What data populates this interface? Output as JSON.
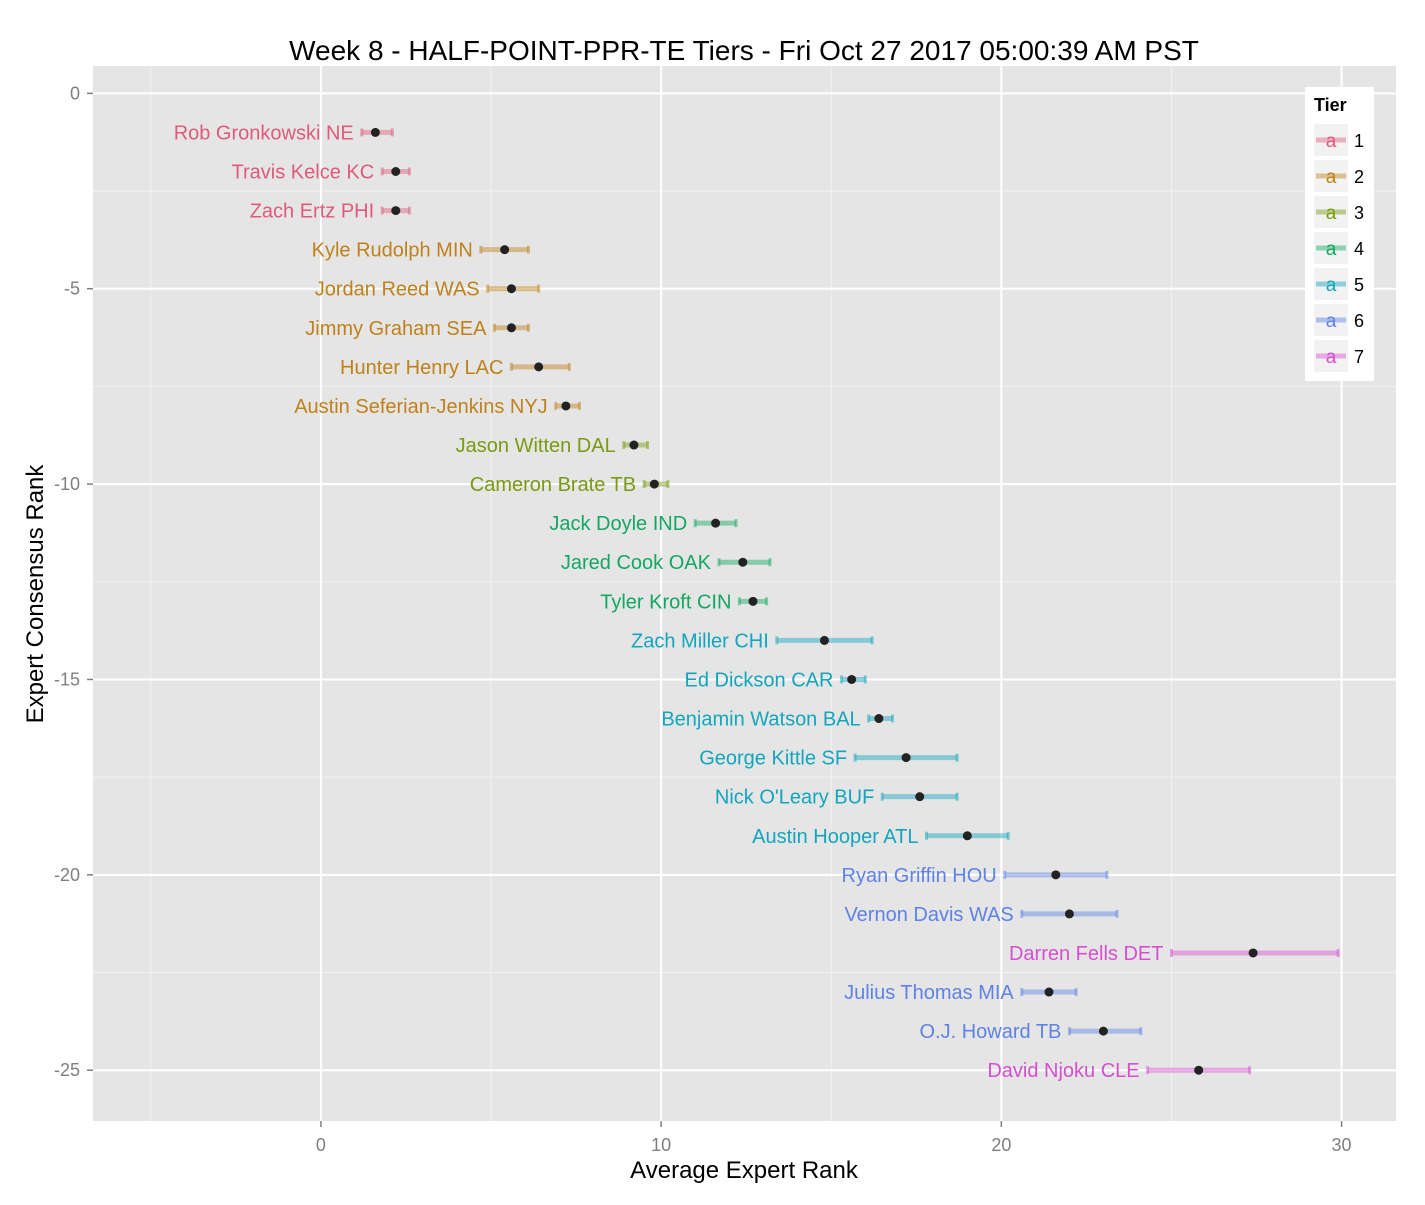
{
  "chart_data": {
    "type": "scatter",
    "title": "Week 8 - HALF-POINT-PPR-TE Tiers - Fri Oct 27 2017 05:00:39 AM PST",
    "xlabel": "Average Expert Rank",
    "ylabel": "Expert Consensus Rank",
    "xlim": [
      -6.7,
      31.6
    ],
    "ylim": [
      -26.3,
      0.7
    ],
    "x_ticks": [
      0,
      10,
      20,
      30
    ],
    "x_tick_labels": [
      "0",
      "10",
      "20",
      "30"
    ],
    "y_ticks": [
      0,
      -5,
      -10,
      -15,
      -20,
      -25
    ],
    "y_tick_labels": [
      "0",
      "-5",
      "-10",
      "-15",
      "-20",
      "-25"
    ],
    "grid": true,
    "legend": {
      "title": "Tier",
      "placement": "top-right",
      "key_glyph": "a",
      "items": [
        {
          "label": "1",
          "color": "#e05a7a"
        },
        {
          "label": "2",
          "color": "#c0811a"
        },
        {
          "label": "3",
          "color": "#7a9a10"
        },
        {
          "label": "4",
          "color": "#12a862"
        },
        {
          "label": "5",
          "color": "#12a6be"
        },
        {
          "label": "6",
          "color": "#5e82e6"
        },
        {
          "label": "7",
          "color": "#d64fd0"
        }
      ]
    },
    "series": [
      {
        "label": "Rob Gronkowski NE",
        "tier": 1,
        "rank": -1,
        "avg": 1.6,
        "lo": 1.2,
        "hi": 2.1
      },
      {
        "label": "Travis Kelce KC",
        "tier": 1,
        "rank": -2,
        "avg": 2.2,
        "lo": 1.8,
        "hi": 2.6
      },
      {
        "label": "Zach Ertz PHI",
        "tier": 1,
        "rank": -3,
        "avg": 2.2,
        "lo": 1.8,
        "hi": 2.6
      },
      {
        "label": "Kyle Rudolph MIN",
        "tier": 2,
        "rank": -4,
        "avg": 5.4,
        "lo": 4.7,
        "hi": 6.1
      },
      {
        "label": "Jordan Reed WAS",
        "tier": 2,
        "rank": -5,
        "avg": 5.6,
        "lo": 4.9,
        "hi": 6.4
      },
      {
        "label": "Jimmy Graham SEA",
        "tier": 2,
        "rank": -6,
        "avg": 5.6,
        "lo": 5.1,
        "hi": 6.1
      },
      {
        "label": "Hunter Henry LAC",
        "tier": 2,
        "rank": -7,
        "avg": 6.4,
        "lo": 5.6,
        "hi": 7.3
      },
      {
        "label": "Austin Seferian-Jenkins NYJ",
        "tier": 2,
        "rank": -8,
        "avg": 7.2,
        "lo": 6.9,
        "hi": 7.6
      },
      {
        "label": "Jason Witten DAL",
        "tier": 3,
        "rank": -9,
        "avg": 9.2,
        "lo": 8.9,
        "hi": 9.6
      },
      {
        "label": "Cameron Brate TB",
        "tier": 3,
        "rank": -10,
        "avg": 9.8,
        "lo": 9.5,
        "hi": 10.2
      },
      {
        "label": "Jack Doyle IND",
        "tier": 4,
        "rank": -11,
        "avg": 11.6,
        "lo": 11.0,
        "hi": 12.2
      },
      {
        "label": "Jared Cook OAK",
        "tier": 4,
        "rank": -12,
        "avg": 12.4,
        "lo": 11.7,
        "hi": 13.2
      },
      {
        "label": "Tyler Kroft CIN",
        "tier": 4,
        "rank": -13,
        "avg": 12.7,
        "lo": 12.3,
        "hi": 13.1
      },
      {
        "label": "Zach Miller CHI",
        "tier": 5,
        "rank": -14,
        "avg": 14.8,
        "lo": 13.4,
        "hi": 16.2
      },
      {
        "label": "Ed Dickson CAR",
        "tier": 5,
        "rank": -15,
        "avg": 15.6,
        "lo": 15.3,
        "hi": 16.0
      },
      {
        "label": "Benjamin Watson BAL",
        "tier": 5,
        "rank": -16,
        "avg": 16.4,
        "lo": 16.1,
        "hi": 16.8
      },
      {
        "label": "George Kittle SF",
        "tier": 5,
        "rank": -17,
        "avg": 17.2,
        "lo": 15.7,
        "hi": 18.7
      },
      {
        "label": "Nick O'Leary BUF",
        "tier": 5,
        "rank": -18,
        "avg": 17.6,
        "lo": 16.5,
        "hi": 18.7
      },
      {
        "label": "Austin Hooper ATL",
        "tier": 5,
        "rank": -19,
        "avg": 19.0,
        "lo": 17.8,
        "hi": 20.2
      },
      {
        "label": "Ryan Griffin HOU",
        "tier": 6,
        "rank": -20,
        "avg": 21.6,
        "lo": 20.1,
        "hi": 23.1
      },
      {
        "label": "Vernon Davis WAS",
        "tier": 6,
        "rank": -21,
        "avg": 22.0,
        "lo": 20.6,
        "hi": 23.4
      },
      {
        "label": "Darren Fells DET",
        "tier": 7,
        "rank": -22,
        "avg": 27.4,
        "lo": 25.0,
        "hi": 29.9
      },
      {
        "label": "Julius Thomas MIA",
        "tier": 6,
        "rank": -23,
        "avg": 21.4,
        "lo": 20.6,
        "hi": 22.2
      },
      {
        "label": "O.J. Howard TB",
        "tier": 6,
        "rank": -24,
        "avg": 23.0,
        "lo": 22.0,
        "hi": 24.1
      },
      {
        "label": "David Njoku CLE",
        "tier": 7,
        "rank": -25,
        "avg": 25.8,
        "lo": 24.3,
        "hi": 27.3
      }
    ]
  }
}
